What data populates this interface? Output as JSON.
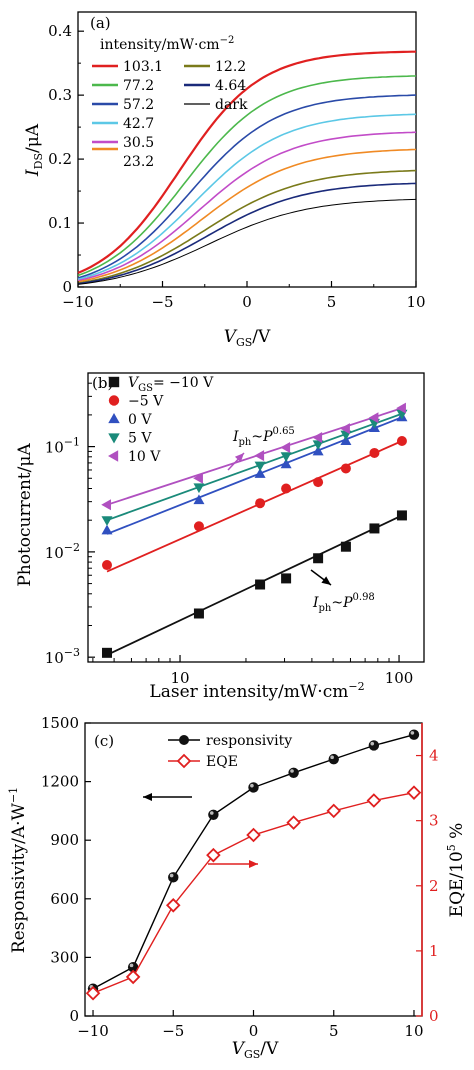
{
  "figure": {
    "panel_a_tag": "(a)",
    "panel_b_tag": "(b)",
    "panel_c_tag": "(c)"
  },
  "chart_data": [
    {
      "panel": "(a)",
      "type": "line",
      "xlabel_main": "V",
      "xlabel_sub": "GS",
      "xlabel_unit": "/V",
      "ylabel_main": "I",
      "ylabel_sub": "DS",
      "ylabel_unit": "/μA",
      "xlim": [
        -10,
        10
      ],
      "ylim": [
        0,
        0.43
      ],
      "xticks": [
        -10,
        -5,
        0,
        5,
        10
      ],
      "yticks": [
        0,
        0.1,
        0.2,
        0.3,
        0.4
      ],
      "ytick_labels": [
        "0",
        "0.1",
        "0.2",
        "0.3",
        "0.4"
      ],
      "legend_title": "intensity/mW·cm",
      "legend_title_sup": "−2",
      "legend_placement": "top-left",
      "series": [
        {
          "name": "103.1",
          "color": "#e02020",
          "stroke": 2.2,
          "ymin": 0.022,
          "ymax": 0.368,
          "mid": -4.0,
          "k": 0.42
        },
        {
          "name": "77.2",
          "color": "#4cb84c",
          "stroke": 1.6,
          "ymin": 0.018,
          "ymax": 0.33,
          "mid": -3.7,
          "k": 0.4
        },
        {
          "name": "57.2",
          "color": "#2a4aa8",
          "stroke": 1.6,
          "ymin": 0.014,
          "ymax": 0.3,
          "mid": -3.4,
          "k": 0.39
        },
        {
          "name": "42.7",
          "color": "#5cc8e6",
          "stroke": 1.6,
          "ymin": 0.012,
          "ymax": 0.27,
          "mid": -3.1,
          "k": 0.38
        },
        {
          "name": "30.5",
          "color": "#c24cc8",
          "stroke": 1.6,
          "ymin": 0.01,
          "ymax": 0.242,
          "mid": -2.9,
          "k": 0.37
        },
        {
          "name": "23.2",
          "color": "#f08a24",
          "stroke": 1.6,
          "ymin": 0.008,
          "ymax": 0.215,
          "mid": -2.7,
          "k": 0.36
        },
        {
          "name": "12.2",
          "color": "#7a7a1a",
          "stroke": 1.6,
          "ymin": 0.006,
          "ymax": 0.182,
          "mid": -2.5,
          "k": 0.35
        },
        {
          "name": "4.64",
          "color": "#1a2a7a",
          "stroke": 1.6,
          "ymin": 0.005,
          "ymax": 0.162,
          "mid": -2.4,
          "k": 0.35
        },
        {
          "name": "dark",
          "color": "#000000",
          "stroke": 1.0,
          "ymin": 0.004,
          "ymax": 0.137,
          "mid": -2.3,
          "k": 0.34
        }
      ]
    },
    {
      "panel": "(b)",
      "type": "scatter",
      "xscale": "log",
      "yscale": "log",
      "xlabel": "Laser intensity/mW·cm",
      "xlabel_sup": "−2",
      "ylabel": "Photocurrent/μA",
      "xlim": [
        3.8,
        130
      ],
      "ylim": [
        0.0009,
        0.5
      ],
      "xticks": [
        10,
        100
      ],
      "xtick_labels": [
        "10",
        "100"
      ],
      "yticks": [
        0.001,
        0.01,
        0.1
      ],
      "ytick_base": "10",
      "ytick_exps": [
        "−3",
        "−2",
        "−1"
      ],
      "legend_placement": "top-left",
      "annotation_upper": {
        "main": "I",
        "sub": "ph",
        "tilde": "~P",
        "sup": "0.65",
        "arrow_color": "#b050c0"
      },
      "annotation_lower": {
        "main": "I",
        "sub": "ph",
        "tilde": "~P",
        "sup": "0.98",
        "arrow_color": "#000000"
      },
      "series": [
        {
          "name": "V",
          "name_sub": "GS",
          "name_rest": "= −10 V",
          "marker": "square",
          "color": "#111111",
          "x": [
            4.64,
            12.2,
            23.2,
            30.5,
            42.7,
            57.2,
            77.2,
            103.1
          ],
          "y": [
            0.0011,
            0.0026,
            0.0049,
            0.0056,
            0.0087,
            0.0112,
            0.0167,
            0.0222
          ],
          "fit": [
            0.00105,
            0.0222
          ]
        },
        {
          "name": "−5 V",
          "marker": "circle",
          "color": "#e02020",
          "x": [
            4.64,
            12.2,
            23.2,
            30.5,
            42.7,
            57.2,
            77.2,
            103.1
          ],
          "y": [
            0.0075,
            0.0175,
            0.029,
            0.04,
            0.046,
            0.062,
            0.087,
            0.113
          ],
          "fit": [
            0.0065,
            0.113
          ]
        },
        {
          "name": "0 V",
          "marker": "triangle-up",
          "color": "#3050c0",
          "x": [
            4.64,
            12.2,
            23.2,
            30.5,
            42.7,
            57.2,
            77.2,
            103.1
          ],
          "y": [
            0.016,
            0.031,
            0.055,
            0.068,
            0.09,
            0.113,
            0.15,
            0.19
          ],
          "fit": [
            0.0148,
            0.19
          ]
        },
        {
          "name": "5 V",
          "marker": "triangle-down",
          "color": "#1a8a7a",
          "x": [
            4.64,
            12.2,
            23.2,
            30.5,
            42.7,
            57.2,
            77.2,
            103.1
          ],
          "y": [
            0.02,
            0.041,
            0.066,
            0.081,
            0.105,
            0.13,
            0.168,
            0.205
          ],
          "fit": [
            0.02,
            0.205
          ]
        },
        {
          "name": "10 V",
          "marker": "triangle-left",
          "color": "#b050c0",
          "x": [
            4.64,
            12.2,
            23.2,
            30.5,
            42.7,
            57.2,
            77.2,
            103.1
          ],
          "y": [
            0.028,
            0.05,
            0.082,
            0.098,
            0.122,
            0.148,
            0.188,
            0.232
          ],
          "fit": [
            0.028,
            0.232
          ]
        }
      ]
    },
    {
      "panel": "(c)",
      "type": "line",
      "xlabel_main": "V",
      "xlabel_sub": "GS",
      "xlabel_unit": "/V",
      "ylabel_left": "Responsivity/A·W",
      "ylabel_left_sup": "−1",
      "ylabel_right": "EQE/10",
      "ylabel_right_sup": "5",
      "ylabel_right_unit": " %",
      "xlim": [
        -10.5,
        10.5
      ],
      "xticks": [
        -10,
        -5,
        0,
        5,
        10
      ],
      "ylim_left": [
        0,
        1500
      ],
      "yticks_left": [
        0,
        300,
        600,
        900,
        1200,
        1500
      ],
      "ylim_right": [
        0,
        4.5
      ],
      "yticks_right": [
        0,
        1,
        2,
        3,
        4
      ],
      "legend_placement": "top-center",
      "x": [
        -10,
        -7.5,
        -5,
        -2.5,
        0,
        2.5,
        5,
        7.5,
        10
      ],
      "series": [
        {
          "name": "responsivity",
          "axis": "left",
          "marker": "ball",
          "color": "#000000",
          "values": [
            140,
            250,
            710,
            1030,
            1170,
            1245,
            1315,
            1385,
            1440
          ]
        },
        {
          "name": "EQE",
          "axis": "right",
          "marker": "diamond-open",
          "color": "#e02020",
          "values": [
            0.35,
            0.6,
            1.7,
            2.47,
            2.78,
            2.97,
            3.15,
            3.31,
            3.43
          ]
        }
      ]
    }
  ]
}
